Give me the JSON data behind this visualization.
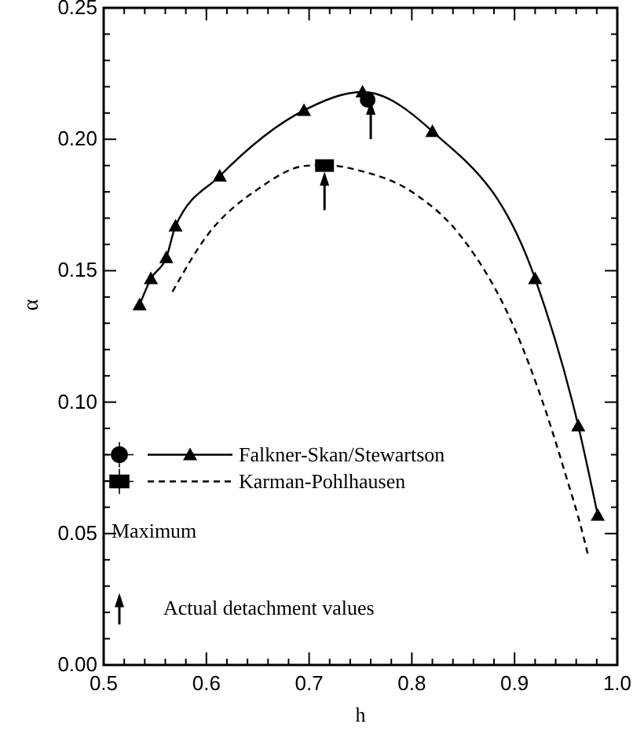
{
  "chart_data": {
    "type": "line",
    "xlabel": "h",
    "ylabel": "α",
    "xlim": [
      0.5,
      1.0
    ],
    "ylim": [
      0,
      0.25
    ],
    "xticks": [
      {
        "value": 0.5,
        "label": "0.5"
      },
      {
        "value": 0.6,
        "label": "0.6"
      },
      {
        "value": 0.7,
        "label": "0.7"
      },
      {
        "value": 0.8,
        "label": "0.8"
      },
      {
        "value": 0.9,
        "label": "0.9"
      },
      {
        "value": 1.0,
        "label": "1.0"
      }
    ],
    "yticks": [
      {
        "value": 0,
        "label": "0.00"
      },
      {
        "value": 0.05,
        "label": "0.05"
      },
      {
        "value": 0.1,
        "label": "0.10"
      },
      {
        "value": 0.15,
        "label": "0.15"
      },
      {
        "value": 0.2,
        "label": "0.20"
      },
      {
        "value": 0.25,
        "label": "0.25"
      }
    ],
    "grid": false,
    "legend": "left",
    "annotations": [
      "Maximum"
    ],
    "series": [
      {
        "name": "Falkner-Skan/Stewartson",
        "type": "line",
        "color": "#000000",
        "marker": "triangle",
        "line_style": "solid",
        "x": [
          0.535,
          0.546,
          0.561,
          0.57,
          0.613,
          0.695,
          0.752,
          0.82,
          0.92,
          0.962,
          0.981
        ],
        "values": [
          0.137,
          0.147,
          0.155,
          0.167,
          0.186,
          0.211,
          0.218,
          0.203,
          0.147,
          0.091,
          0.057
        ]
      },
      {
        "name": "Karman-Pohlhausen",
        "type": "line",
        "color": "#000000",
        "marker": "none",
        "line_style": "dashed",
        "x": [
          0.567,
          0.6,
          0.65,
          0.7,
          0.72,
          0.75,
          0.8,
          0.85,
          0.9,
          0.93,
          0.95,
          0.965,
          0.972
        ],
        "values": [
          0.142,
          0.163,
          0.181,
          0.19,
          0.19,
          0.188,
          0.18,
          0.162,
          0.128,
          0.097,
          0.072,
          0.052,
          0.041
        ]
      },
      {
        "type": "scatter",
        "color": "#000000",
        "marker": "circle",
        "x": [
          0.757
        ],
        "values": [
          0.215
        ]
      },
      {
        "type": "scatter",
        "color": "#000000",
        "marker": "square",
        "x": [
          0.715
        ],
        "values": [
          0.19
        ]
      },
      {
        "name": "Actual detachment values",
        "type": "scatter",
        "color": "#000000",
        "marker": "triangle",
        "x": [
          0.76,
          0.715
        ],
        "values": [
          0.212,
          0.185
        ]
      }
    ]
  }
}
